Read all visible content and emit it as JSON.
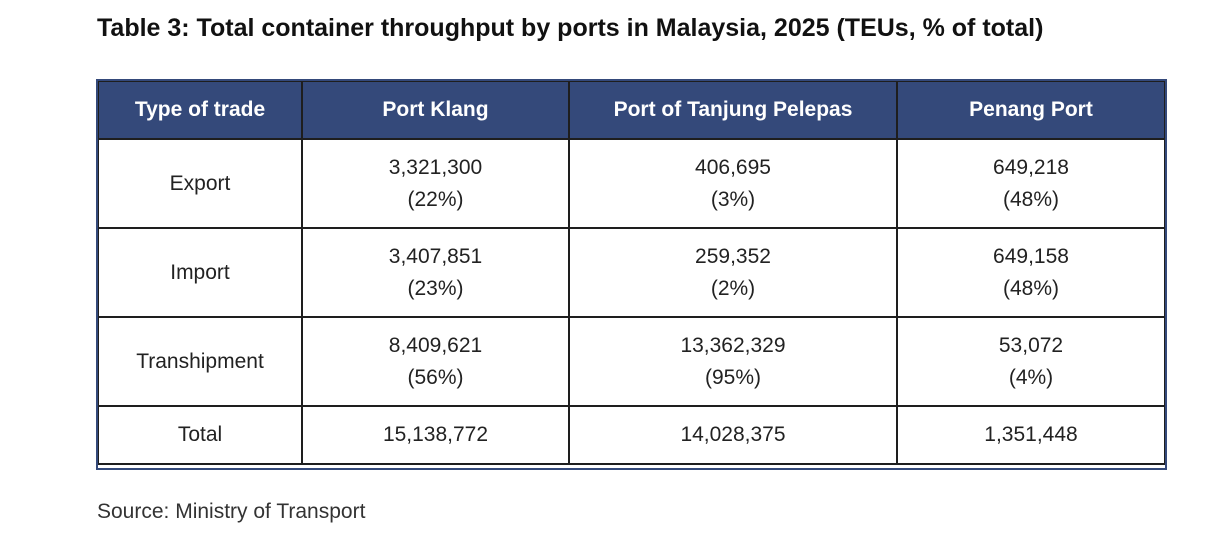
{
  "title": "Table 3: Total container throughput by ports in Malaysia, 2025 (TEUs, % of total)",
  "columns": [
    "Type of trade",
    "Port Klang",
    "Port of Tanjung Pelepas",
    "Penang Port"
  ],
  "rows": [
    {
      "type": "Export",
      "cells": [
        {
          "value": "3,321,300",
          "pct": "(22%)"
        },
        {
          "value": "406,695",
          "pct": "(3%)"
        },
        {
          "value": "649,218",
          "pct": "(48%)"
        }
      ]
    },
    {
      "type": "Import",
      "cells": [
        {
          "value": "3,407,851",
          "pct": "(23%)"
        },
        {
          "value": "259,352",
          "pct": "(2%)"
        },
        {
          "value": "649,158",
          "pct": "(48%)"
        }
      ]
    },
    {
      "type": "Transhipment",
      "cells": [
        {
          "value": "8,409,621",
          "pct": "(56%)"
        },
        {
          "value": "13,362,329",
          "pct": "(95%)"
        },
        {
          "value": "53,072",
          "pct": "(4%)"
        }
      ]
    }
  ],
  "total": {
    "label": "Total",
    "values": [
      "15,138,772",
      "14,028,375",
      "1,351,448"
    ]
  },
  "source": "Source: Ministry of Transport",
  "colors": {
    "header_bg": "#34497a",
    "header_text": "#ffffff",
    "border": "#1e1e1e"
  }
}
